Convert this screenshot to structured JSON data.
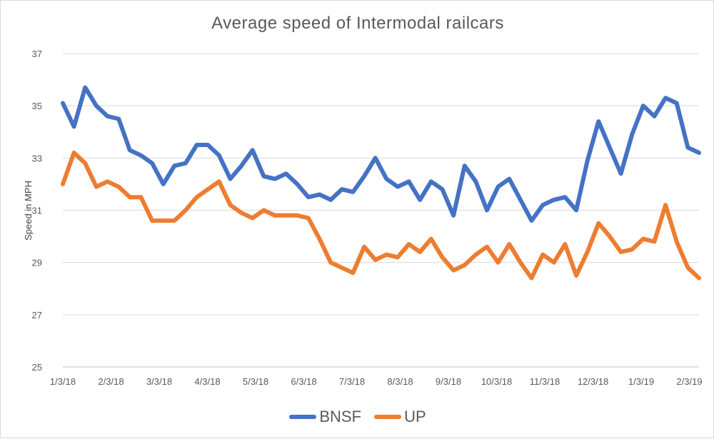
{
  "chart_data": {
    "type": "line",
    "title": "Average speed of Intermodal railcars",
    "xlabel": "",
    "ylabel": "Speed in MPH",
    "ylim": [
      25,
      37
    ],
    "yticks": [
      "25",
      "27",
      "29",
      "31",
      "33",
      "35",
      "37"
    ],
    "xtick_labels": [
      "1/3/18",
      "2/3/18",
      "3/3/18",
      "4/3/18",
      "5/3/18",
      "6/3/18",
      "7/3/18",
      "8/3/18",
      "9/3/18",
      "10/3/18",
      "11/3/18",
      "12/3/18",
      "1/3/19",
      "2/3/19"
    ],
    "grid": true,
    "legend_position": "bottom",
    "series": [
      {
        "name": "BNSF",
        "color": "#4472c4",
        "values": [
          35.1,
          34.2,
          35.7,
          35.0,
          34.6,
          34.5,
          33.3,
          33.1,
          32.8,
          32.0,
          32.7,
          32.8,
          33.5,
          33.5,
          33.1,
          32.2,
          32.7,
          33.3,
          32.3,
          32.2,
          32.4,
          32.0,
          31.5,
          31.6,
          31.4,
          31.8,
          31.7,
          32.3,
          33.0,
          32.2,
          31.9,
          32.1,
          31.4,
          32.1,
          31.8,
          30.8,
          32.7,
          32.1,
          31.0,
          31.9,
          32.2,
          31.4,
          30.6,
          31.2,
          31.4,
          31.5,
          31.0,
          32.9,
          34.4,
          33.4,
          32.4,
          33.9,
          35.0,
          34.6,
          35.3,
          35.1,
          33.4,
          33.2
        ]
      },
      {
        "name": "UP",
        "color": "#ed7d31",
        "values": [
          32.0,
          33.2,
          32.8,
          31.9,
          32.1,
          31.9,
          31.5,
          31.5,
          30.6,
          30.6,
          30.6,
          31.0,
          31.5,
          31.8,
          32.1,
          31.2,
          30.9,
          30.7,
          31.0,
          30.8,
          30.8,
          30.8,
          30.7,
          29.9,
          29.0,
          28.8,
          28.6,
          29.6,
          29.1,
          29.3,
          29.2,
          29.7,
          29.4,
          29.9,
          29.2,
          28.7,
          28.9,
          29.3,
          29.6,
          29.0,
          29.7,
          29.0,
          28.4,
          29.3,
          29.0,
          29.7,
          28.5,
          29.4,
          30.5,
          30.0,
          29.4,
          29.5,
          29.9,
          29.8,
          31.2,
          29.8,
          28.8,
          28.4
        ]
      }
    ]
  }
}
